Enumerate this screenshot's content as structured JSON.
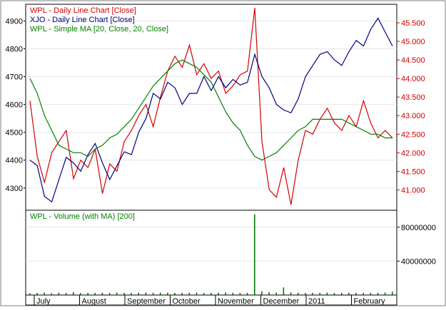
{
  "chart_data": [
    {
      "type": "line",
      "legend": [
        {
          "label": "WPL - Daily Line Chart [Close]",
          "color": "#d40000"
        },
        {
          "label": "XJO - Daily Line Chart [Close]",
          "color": "#000080"
        },
        {
          "label": "WPL - Simple MA [20, Close, 20, Close]",
          "color": "#008000"
        }
      ],
      "left_axis": {
        "ylim": [
          4220,
          4960
        ],
        "ticks": [
          4300,
          4400,
          4500,
          4600,
          4700,
          4800,
          4900
        ],
        "tick_labels": [
          "4300",
          "4400",
          "4500",
          "4600",
          "4700",
          "4800",
          "4900"
        ]
      },
      "right_axis": {
        "ylim": [
          40.45,
          46.0
        ],
        "ticks": [
          41.0,
          41.5,
          42.0,
          42.5,
          43.0,
          43.5,
          44.0,
          44.5,
          45.0,
          45.5
        ],
        "tick_labels": [
          "41.000",
          "41.500",
          "42.000",
          "42.500",
          "43.000",
          "43.500",
          "44.000",
          "44.500",
          "45.000",
          "45.500"
        ]
      },
      "x_range": [
        0,
        100
      ],
      "series": [
        {
          "name": "WPL - Daily Line Chart [Close]",
          "axis": "right",
          "color": "#d40000",
          "x": [
            0,
            2,
            4,
            6,
            8,
            10,
            12,
            14,
            16,
            18,
            20,
            22,
            24,
            26,
            28,
            30,
            32,
            34,
            36,
            38,
            40,
            42,
            44,
            46,
            48,
            50,
            52,
            54,
            56,
            58,
            60,
            62,
            64,
            66,
            68,
            70,
            72,
            74,
            76,
            78,
            80,
            82,
            84,
            86,
            88,
            90,
            92,
            94,
            96,
            98,
            100
          ],
          "y": [
            43.4,
            41.9,
            41.2,
            42.0,
            42.3,
            42.6,
            41.3,
            41.8,
            41.6,
            42.1,
            40.9,
            41.7,
            41.5,
            42.3,
            42.6,
            43.0,
            43.3,
            42.7,
            43.5,
            44.2,
            44.6,
            44.3,
            44.9,
            44.1,
            44.4,
            44.0,
            44.2,
            43.6,
            43.8,
            44.1,
            44.2,
            45.9,
            42.3,
            41.0,
            40.8,
            41.6,
            40.6,
            41.8,
            42.6,
            42.5,
            42.9,
            43.2,
            42.8,
            42.6,
            43.0,
            42.7,
            43.4,
            42.8,
            42.4,
            42.6,
            42.4
          ]
        },
        {
          "name": "XJO - Daily Line Chart [Close]",
          "axis": "left",
          "color": "#000080",
          "x": [
            0,
            2,
            4,
            6,
            8,
            10,
            12,
            14,
            16,
            18,
            20,
            22,
            24,
            26,
            28,
            30,
            32,
            34,
            36,
            38,
            40,
            42,
            44,
            46,
            48,
            50,
            52,
            54,
            56,
            58,
            60,
            62,
            64,
            66,
            68,
            70,
            72,
            74,
            76,
            78,
            80,
            82,
            84,
            86,
            88,
            90,
            92,
            94,
            96,
            98,
            100
          ],
          "y": [
            4400,
            4380,
            4270,
            4250,
            4330,
            4410,
            4390,
            4360,
            4420,
            4460,
            4390,
            4330,
            4380,
            4430,
            4420,
            4500,
            4550,
            4640,
            4620,
            4680,
            4660,
            4600,
            4640,
            4640,
            4700,
            4650,
            4700,
            4660,
            4690,
            4670,
            4680,
            4780,
            4700,
            4660,
            4600,
            4580,
            4570,
            4620,
            4700,
            4740,
            4780,
            4790,
            4760,
            4740,
            4790,
            4830,
            4810,
            4870,
            4910,
            4860,
            4810
          ]
        },
        {
          "name": "WPL - Simple MA [20, Close, 20, Close]",
          "axis": "right",
          "color": "#008000",
          "x": [
            0,
            2,
            4,
            6,
            8,
            10,
            12,
            14,
            16,
            18,
            20,
            22,
            24,
            26,
            28,
            30,
            32,
            34,
            36,
            38,
            40,
            42,
            44,
            46,
            48,
            50,
            52,
            54,
            56,
            58,
            60,
            62,
            64,
            66,
            68,
            70,
            72,
            74,
            76,
            78,
            80,
            82,
            84,
            86,
            88,
            90,
            92,
            94,
            96,
            98,
            100
          ],
          "y": [
            44.0,
            43.6,
            43.0,
            42.6,
            42.2,
            42.1,
            42.0,
            42.0,
            41.9,
            42.1,
            42.2,
            42.4,
            42.5,
            42.7,
            42.9,
            43.2,
            43.5,
            43.8,
            44.0,
            44.2,
            44.4,
            44.5,
            44.4,
            44.3,
            44.1,
            43.9,
            43.5,
            43.1,
            42.8,
            42.6,
            42.2,
            41.9,
            41.8,
            41.9,
            42.0,
            42.2,
            42.4,
            42.6,
            42.7,
            42.9,
            42.9,
            42.9,
            42.9,
            42.9,
            42.8,
            42.7,
            42.6,
            42.5,
            42.5,
            42.4,
            42.4
          ]
        }
      ]
    },
    {
      "type": "bar",
      "legend": [
        {
          "label": "WPL - Volume (with MA) [200]",
          "color": "#008000"
        }
      ],
      "ylim": [
        0,
        100000000
      ],
      "ticks": [
        40000000,
        80000000
      ],
      "tick_labels": [
        "40000000",
        "80000000"
      ],
      "x_range": [
        0,
        100
      ],
      "series": [
        {
          "name": "WPL - Volume (with MA) [200]",
          "color": "#008000",
          "x": [
            0,
            2,
            4,
            6,
            8,
            10,
            12,
            14,
            16,
            18,
            20,
            22,
            24,
            26,
            28,
            30,
            32,
            34,
            36,
            38,
            40,
            42,
            44,
            46,
            48,
            50,
            52,
            54,
            56,
            58,
            60,
            62,
            64,
            66,
            68,
            70,
            72,
            74,
            76,
            78,
            80,
            82,
            84,
            86,
            88,
            90,
            92,
            94,
            96,
            98,
            100
          ],
          "values": [
            2000000,
            2500000,
            3000000,
            2200000,
            2800000,
            2500000,
            3500000,
            2400000,
            2700000,
            2600000,
            2800000,
            2500000,
            3000000,
            2600000,
            2400000,
            2800000,
            3000000,
            2600000,
            2900000,
            2700000,
            2500000,
            2600000,
            2800000,
            3000000,
            2500000,
            2600000,
            2700000,
            3200000,
            2800000,
            2500000,
            2600000,
            95000000,
            4500000,
            3500000,
            3000000,
            9000000,
            3200000,
            2800000,
            2500000,
            2600000,
            2700000,
            2900000,
            2500000,
            2600000,
            2800000,
            2700000,
            2500000,
            2600000,
            2700000,
            3000000,
            4000000
          ]
        }
      ]
    }
  ],
  "x_axis": {
    "months": [
      "July",
      "August",
      "September",
      "October",
      "November",
      "December",
      "2011",
      "February"
    ]
  }
}
